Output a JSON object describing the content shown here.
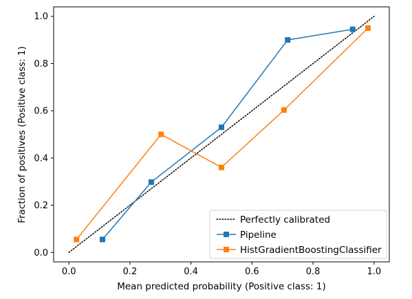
{
  "chart_data": {
    "type": "line",
    "title": "",
    "xlabel": "Mean predicted probability (Positive class: 1)",
    "ylabel": "Fraction of positives (Positive class: 1)",
    "xlim": [
      -0.05,
      1.05
    ],
    "ylim": [
      -0.04,
      1.04
    ],
    "xticks": [
      0.0,
      0.2,
      0.4,
      0.6,
      0.8,
      1.0
    ],
    "yticks": [
      0.0,
      0.2,
      0.4,
      0.6,
      0.8,
      1.0
    ],
    "xtick_labels": [
      "0.0",
      "0.2",
      "0.4",
      "0.6",
      "0.8",
      "1.0"
    ],
    "ytick_labels": [
      "0.0",
      "0.2",
      "0.4",
      "0.6",
      "0.8",
      "1.0"
    ],
    "grid": false,
    "legend_position": "lower-right",
    "reference_line": {
      "name": "Perfectly calibrated",
      "x": [
        0.0,
        1.0
      ],
      "y": [
        0.0,
        1.0
      ],
      "color": "#000000",
      "style": "dotted"
    },
    "series": [
      {
        "name": "Pipeline",
        "color": "#1f77b4",
        "marker": "square",
        "x": [
          0.11,
          0.27,
          0.5,
          0.717,
          0.93
        ],
        "y": [
          0.055,
          0.298,
          0.53,
          0.9,
          0.945
        ]
      },
      {
        "name": "HistGradientBoostingClassifier",
        "color": "#ff7f0e",
        "marker": "square",
        "x": [
          0.025,
          0.302,
          0.5,
          0.705,
          0.98
        ],
        "y": [
          0.055,
          0.5,
          0.36,
          0.603,
          0.95
        ]
      }
    ]
  }
}
